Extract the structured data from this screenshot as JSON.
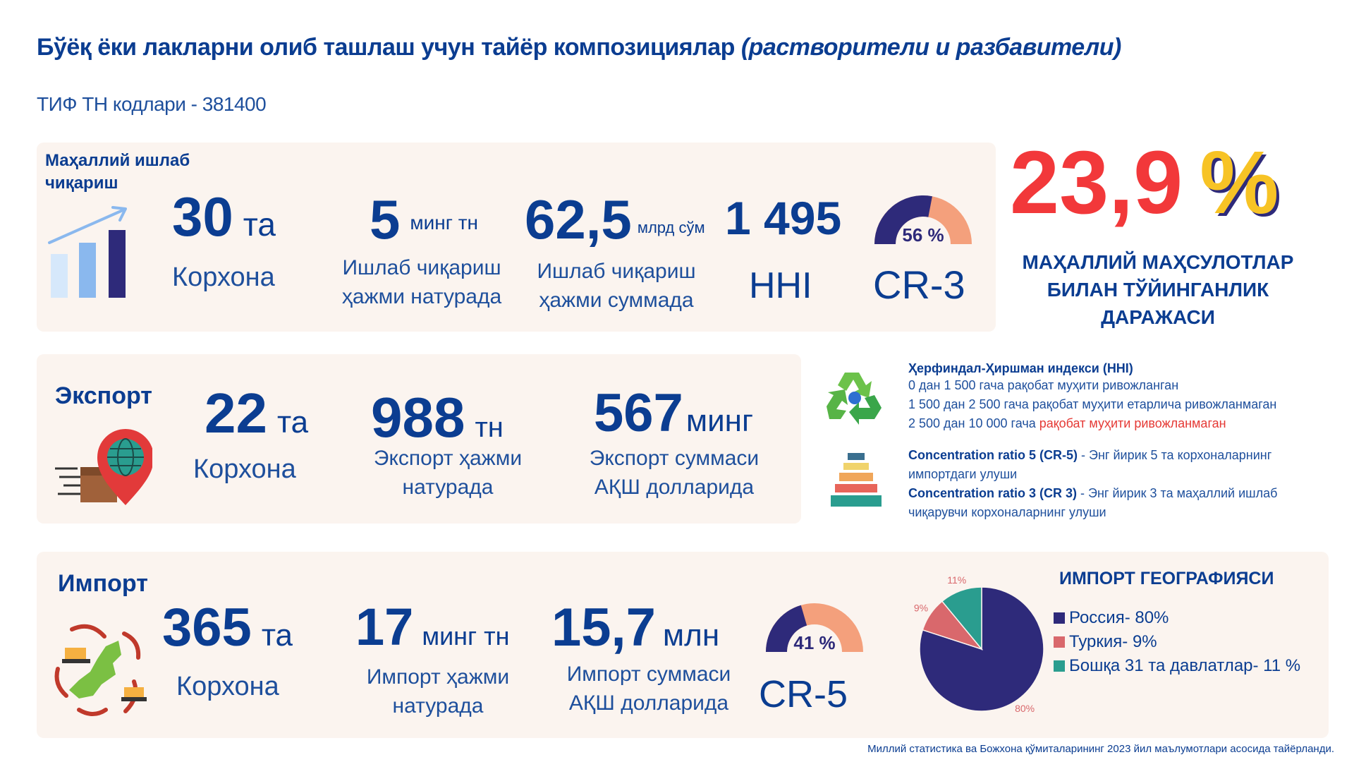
{
  "header": {
    "title_main": "Бўёқ ёки лакларни олиб ташлаш учун тайёр композициялар",
    "title_paren": "(растворители и разбавители)",
    "tnved": "ТИФ ТН кодлари - 381400"
  },
  "local": {
    "label_line1": "Маҳаллий ишлаб",
    "label_line2": "чиқариш",
    "enterprises_value": "30",
    "enterprises_unit": "та",
    "enterprises_label": "Корхона",
    "volume_value": "5",
    "volume_unit": "минг тн",
    "volume_label_line1": "Ишлаб чиқариш",
    "volume_label_line2": "ҳажми натурада",
    "sum_value": "62,5",
    "sum_unit": "млрд сўм",
    "sum_label_line1": "Ишлаб чиқариш",
    "sum_label_line2": "ҳажми суммада",
    "hhi_value": "1 495",
    "hhi_label": "HHI",
    "cr3_percent": "56 %",
    "cr3_fraction": 0.56,
    "cr3_label": "CR-3"
  },
  "saturation": {
    "value": "23,9",
    "percent_sign": "%",
    "label_line1": "МАҲАЛЛИЙ МАҲСУЛОТЛАР",
    "label_line2": "БИЛАН ТЎЙИНГАНЛИК",
    "label_line3": "ДАРАЖАСИ"
  },
  "export": {
    "label": "Экспорт",
    "enterprises_value": "22",
    "enterprises_unit": "та",
    "enterprises_label": "Корхона",
    "volume_value": "988",
    "volume_unit": "тн",
    "volume_label_line1": "Экспорт ҳажми",
    "volume_label_line2": "натурада",
    "sum_value": "567",
    "sum_unit": "минг",
    "sum_label_line1": "Экспорт суммаси",
    "sum_label_line2": "АҚШ долларида"
  },
  "info": {
    "hhi_title": "Ҳерфиндал-Ҳиршман индекси (HHI)",
    "hhi_line1": "0 дан 1 500 гача рақобат муҳити ривожланган",
    "hhi_line2": "1 500 дан 2 500 гача рақобат муҳити етарлича ривожланмаган",
    "hhi_line3_a": "2 500 дан 10 000 гача ",
    "hhi_line3_b": "рақобат муҳити ривожланмаган",
    "cr5_title": "Concentration ratio 5 (CR-5)",
    "cr5_text_line1": " - Энг йирик 5 та корхоналарнинг",
    "cr5_text_line2": "импортдаги улуши",
    "cr3_title": "Concentration ratio 3 (CR 3)",
    "cr3_text_line1": " - Энг йирик 3 та маҳаллий ишлаб",
    "cr3_text_line2": "чиқарувчи корхоналарнинг улуши"
  },
  "import": {
    "label": "Импорт",
    "enterprises_value": "365",
    "enterprises_unit": "та",
    "enterprises_label": "Корхона",
    "volume_value": "17",
    "volume_unit": "минг тн",
    "volume_label_line1": "Импорт ҳажми",
    "volume_label_line2": "натурада",
    "sum_value": "15,7",
    "sum_unit": "млн",
    "sum_label_line1": "Импорт суммаси",
    "sum_label_line2": "АҚШ долларида",
    "cr5_percent": "41 %",
    "cr5_fraction": 0.41,
    "cr5_label": "CR-5"
  },
  "chart_data": {
    "type": "pie",
    "title": "ИМПОРТ ГЕОГРАФИЯСИ",
    "slices": [
      {
        "name": "Россия- 80%",
        "value": 80,
        "label": "80%",
        "color": "#2e2a7a"
      },
      {
        "name": "Туркия- 9%",
        "value": 9,
        "label": "9%",
        "color": "#d9686c"
      },
      {
        "name": "Бошқа 31 та давлатлар- 11 %",
        "value": 11,
        "label": "11%",
        "color": "#2a9d8f"
      }
    ],
    "legend_position": "right"
  },
  "footnote": "Миллий статистика ва Божхона қўмиталарининг 2023 йил маълумотлари асосида тайёрланди.",
  "colors": {
    "navy": "#0b3d91",
    "panel": "#fbf4ef",
    "gauge_dark": "#2e2a7a",
    "gauge_light": "#f4a07c",
    "red": "#f2383a",
    "yellow": "#f7c325"
  }
}
